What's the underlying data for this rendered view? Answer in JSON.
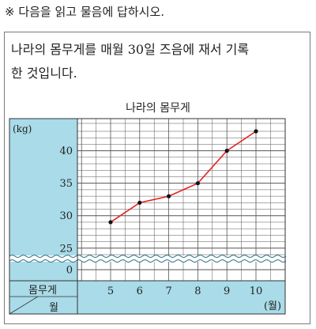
{
  "instruction": "※ 다음을 읽고 물음에 답하시오.",
  "problem_text": {
    "line1": "나라의 몸무게를 매월 30일 즈음에 재서 기록",
    "line2": "한 것입니다."
  },
  "colors": {
    "panel": "#a9dbe8",
    "line": "#e62020",
    "grid": "#555555",
    "frame": "#333333"
  },
  "chart_data": {
    "type": "line",
    "title": "나라의 몸무게",
    "y_unit": "(kg)",
    "x_unit": "(월)",
    "row_header_top": "몸무게",
    "row_header_bottom": "월",
    "y_ticks": [
      "0",
      "25",
      "30",
      "35",
      "40"
    ],
    "ylim": [
      25,
      43
    ],
    "y_axis_break": true,
    "grid": true,
    "categories": [
      "5",
      "6",
      "7",
      "8",
      "9",
      "10"
    ],
    "series": [
      {
        "values": [
          29,
          32,
          33,
          35,
          40,
          43
        ]
      }
    ]
  }
}
